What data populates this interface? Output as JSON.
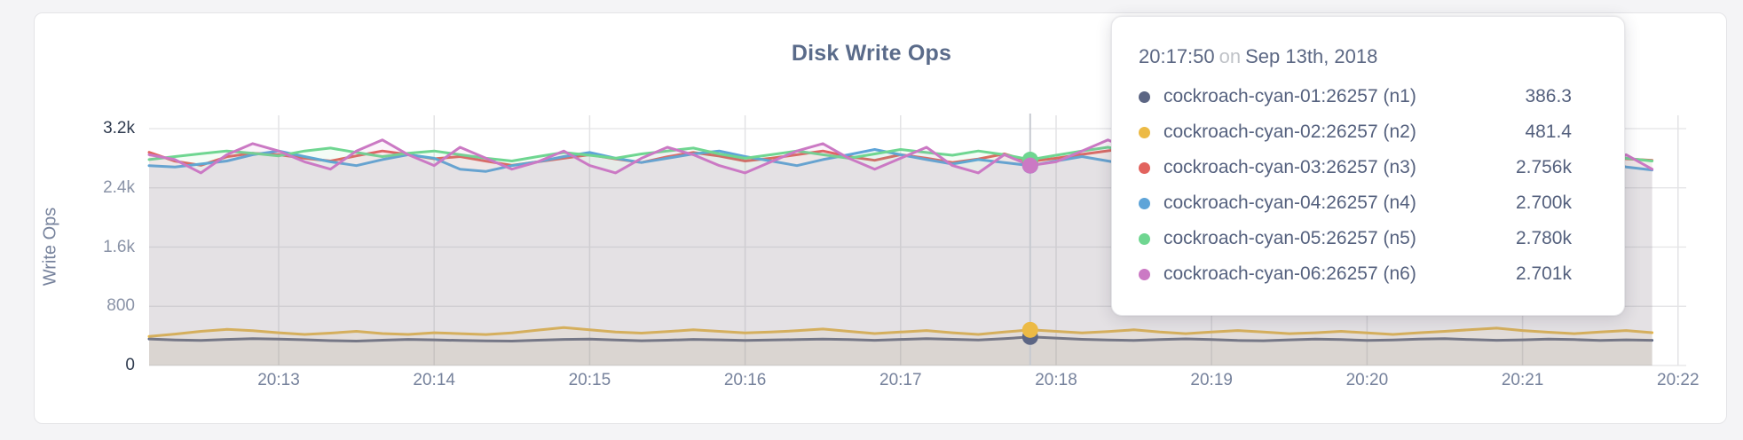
{
  "page": {
    "background": "#f4f4f6"
  },
  "tooltip": {
    "time": "20:17:50",
    "conjunction": "on",
    "date": "Sep 13th, 2018",
    "hover_index": 34
  },
  "chart_data": {
    "type": "area",
    "title": "Disk Write Ops",
    "ylabel": "Write Ops",
    "xlabel": "",
    "grid": true,
    "legend_position": "tooltip",
    "ylim": [
      0,
      3200
    ],
    "y_ticks": [
      {
        "label": "0",
        "value": 0,
        "emph": true
      },
      {
        "label": "800",
        "value": 800,
        "emph": false
      },
      {
        "label": "1.6k",
        "value": 1600,
        "emph": false
      },
      {
        "label": "2.4k",
        "value": 2400,
        "emph": false
      },
      {
        "label": "3.2k",
        "value": 3200,
        "emph": true
      }
    ],
    "x_start_time": "20:12:10",
    "x_interval_sec": 10,
    "x_ticks": [
      {
        "label": "20:13",
        "index": 5
      },
      {
        "label": "20:14",
        "index": 11
      },
      {
        "label": "20:15",
        "index": 17
      },
      {
        "label": "20:16",
        "index": 23
      },
      {
        "label": "20:17",
        "index": 29
      },
      {
        "label": "20:18",
        "index": 35
      },
      {
        "label": "20:19",
        "index": 41
      },
      {
        "label": "20:20",
        "index": 47
      },
      {
        "label": "20:21",
        "index": 53
      },
      {
        "label": "20:22",
        "index": 59
      }
    ],
    "series": [
      {
        "name": "cockroach-cyan-01:26257 (n1)",
        "node": "n1",
        "color": "#5c6684",
        "tooltip_value": "386.3",
        "values": [
          358,
          345,
          338,
          352,
          362,
          356,
          348,
          336,
          330,
          342,
          352,
          346,
          338,
          332,
          330,
          342,
          352,
          356,
          344,
          334,
          342,
          352,
          346,
          338,
          344,
          350,
          356,
          350,
          340,
          352,
          362,
          354,
          344,
          362,
          386.3,
          370,
          354,
          344,
          338,
          350,
          360,
          350,
          338,
          334,
          346,
          356,
          350,
          338,
          344,
          356,
          362,
          350,
          340,
          346,
          356,
          350,
          338,
          346,
          340
        ]
      },
      {
        "name": "cockroach-cyan-02:26257 (n2)",
        "node": "n2",
        "color": "#ecba45",
        "tooltip_value": "481.4",
        "values": [
          392,
          424,
          462,
          488,
          470,
          442,
          420,
          438,
          462,
          432,
          420,
          442,
          430,
          418,
          440,
          478,
          512,
          482,
          452,
          438,
          458,
          482,
          462,
          440,
          452,
          470,
          492,
          462,
          432,
          452,
          472,
          442,
          420,
          452,
          481.4,
          462,
          440,
          458,
          482,
          452,
          430,
          452,
          472,
          452,
          430,
          442,
          462,
          440,
          420,
          442,
          462,
          484,
          504,
          472,
          450,
          430,
          452,
          472,
          444
        ]
      },
      {
        "name": "cockroach-cyan-03:26257 (n3)",
        "node": "n3",
        "color": "#e2635e",
        "tooltip_value": "2.756k",
        "values": [
          2880,
          2760,
          2705,
          2820,
          2868,
          2848,
          2800,
          2762,
          2832,
          2898,
          2850,
          2792,
          2822,
          2760,
          2705,
          2752,
          2800,
          2848,
          2790,
          2742,
          2820,
          2878,
          2830,
          2762,
          2800,
          2848,
          2898,
          2822,
          2772,
          2848,
          2800,
          2742,
          2790,
          2858,
          2756,
          2800,
          2852,
          2900,
          2948,
          2800,
          2752,
          2820,
          2868,
          2800,
          2762,
          2830,
          2782,
          2742,
          2800,
          2848,
          2792,
          2830,
          2878,
          2820,
          2762,
          2800,
          2840,
          2792,
          2772
        ]
      },
      {
        "name": "cockroach-cyan-04:26257 (n4)",
        "node": "n4",
        "color": "#5ea4d8",
        "tooltip_value": "2.700k",
        "values": [
          2700,
          2682,
          2722,
          2762,
          2848,
          2898,
          2822,
          2752,
          2700,
          2782,
          2848,
          2800,
          2652,
          2622,
          2700,
          2752,
          2822,
          2878,
          2800,
          2742,
          2800,
          2858,
          2898,
          2822,
          2762,
          2700,
          2782,
          2848,
          2918,
          2848,
          2782,
          2722,
          2782,
          2742,
          2700,
          2762,
          2822,
          2762,
          2700,
          2652,
          2752,
          2848,
          2800,
          2700,
          2652,
          2722,
          2800,
          2848,
          2782,
          2700,
          2762,
          2822,
          2762,
          2700,
          2742,
          2800,
          2752,
          2682,
          2642
        ]
      },
      {
        "name": "cockroach-cyan-05:26257 (n5)",
        "node": "n5",
        "color": "#6fd691",
        "tooltip_value": "2.780k",
        "values": [
          2782,
          2822,
          2862,
          2898,
          2868,
          2832,
          2898,
          2938,
          2878,
          2822,
          2868,
          2898,
          2848,
          2800,
          2762,
          2822,
          2878,
          2840,
          2800,
          2858,
          2898,
          2938,
          2858,
          2800,
          2848,
          2898,
          2848,
          2800,
          2858,
          2918,
          2878,
          2840,
          2898,
          2848,
          2780,
          2840,
          2898,
          2948,
          2878,
          2822,
          2858,
          2898,
          2840,
          2800,
          2848,
          2800,
          2762,
          2822,
          2878,
          2840,
          2800,
          2848,
          2898,
          2858,
          2822,
          2782,
          2840,
          2800,
          2762
        ]
      },
      {
        "name": "cockroach-cyan-06:26257 (n6)",
        "node": "n6",
        "color": "#cb79c4",
        "tooltip_value": "2.701k",
        "values": [
          2848,
          2782,
          2602,
          2848,
          2998,
          2898,
          2752,
          2652,
          2898,
          3048,
          2848,
          2702,
          2948,
          2800,
          2652,
          2752,
          2898,
          2702,
          2602,
          2800,
          2948,
          2848,
          2702,
          2602,
          2752,
          2898,
          2998,
          2800,
          2652,
          2800,
          2948,
          2702,
          2602,
          2848,
          2701,
          2752,
          2898,
          3048,
          2898,
          2752,
          2652,
          2800,
          2948,
          2848,
          2702,
          2602,
          2752,
          2898,
          2800,
          2652,
          2752,
          2848,
          2948,
          2800,
          2702,
          2602,
          2752,
          2848,
          2652
        ]
      }
    ]
  },
  "style": {
    "grid_color": "#e3e3e5",
    "hover_line_color": "#c7cad0",
    "area_fill_opacity": 0.08
  }
}
